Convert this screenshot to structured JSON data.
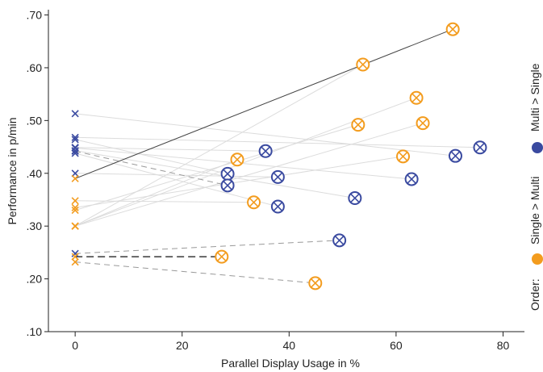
{
  "chart_data": {
    "type": "scatter",
    "xlabel": "Parallel Display Usage in %",
    "ylabel": "Performance in p/min",
    "xlim": [
      -5,
      84
    ],
    "ylim": [
      0.1,
      0.71
    ],
    "x_ticks": [
      0,
      20,
      40,
      60,
      80
    ],
    "x_tick_labels": [
      "0",
      "20",
      "40",
      "60",
      "80"
    ],
    "y_ticks": [
      0.1,
      0.2,
      0.3,
      0.4,
      0.5,
      0.6,
      0.7
    ],
    "y_tick_labels": [
      ".10",
      ".20",
      ".30",
      ".40",
      ".50",
      ".60",
      ".70"
    ],
    "grid": false,
    "colors": {
      "single_multi": "#f39c1e",
      "multi_single": "#3a4aa0"
    },
    "legend": {
      "placement": "right",
      "title": "Order:",
      "items": [
        {
          "label": "Single > Multi",
          "color_key": "single_multi"
        },
        {
          "label": "Multi > Single",
          "color_key": "multi_single"
        }
      ]
    },
    "series": [
      {
        "group": "multi_single",
        "x0": 0.513,
        "x": 71.1,
        "y": 0.433,
        "line": "light"
      },
      {
        "group": "multi_single",
        "x0": 0.468,
        "x": 75.7,
        "y": 0.449,
        "line": "light"
      },
      {
        "group": "multi_single",
        "x0": 0.464,
        "x": 28.5,
        "y": 0.399,
        "line": "light"
      },
      {
        "group": "multi_single",
        "x0": 0.449,
        "x": 35.6,
        "y": 0.442,
        "line": "light"
      },
      {
        "group": "multi_single",
        "x0": 0.443,
        "x": 52.3,
        "y": 0.353,
        "line": "light"
      },
      {
        "group": "multi_single",
        "x0": 0.448,
        "x": 62.9,
        "y": 0.389,
        "line": "light"
      },
      {
        "group": "multi_single",
        "x0": 0.442,
        "x": 28.5,
        "y": 0.377,
        "line": "dashed"
      },
      {
        "group": "multi_single",
        "x0": 0.4,
        "x": 37.9,
        "y": 0.393,
        "line": "light"
      },
      {
        "group": "multi_single",
        "x0": 0.438,
        "x": 37.9,
        "y": 0.337,
        "line": "light"
      },
      {
        "group": "multi_single",
        "x0": 0.248,
        "x": 49.4,
        "y": 0.273,
        "line": "dashed"
      },
      {
        "group": "single_multi",
        "x0": 0.39,
        "x": 70.6,
        "y": 0.673,
        "line": "dark"
      },
      {
        "group": "single_multi",
        "x0": 0.3,
        "x": 53.8,
        "y": 0.606,
        "line": "light"
      },
      {
        "group": "single_multi",
        "x0": 0.3,
        "x": 63.8,
        "y": 0.543,
        "line": "light"
      },
      {
        "group": "single_multi",
        "x0": 0.3,
        "x": 65.0,
        "y": 0.495,
        "line": "light"
      },
      {
        "group": "single_multi",
        "x0": 0.33,
        "x": 52.9,
        "y": 0.492,
        "line": "light"
      },
      {
        "group": "single_multi",
        "x0": 0.335,
        "x": 61.3,
        "y": 0.432,
        "line": "light"
      },
      {
        "group": "single_multi",
        "x0": 0.3,
        "x": 30.3,
        "y": 0.426,
        "line": "light"
      },
      {
        "group": "single_multi",
        "x0": 0.348,
        "x": 33.4,
        "y": 0.345,
        "line": "light"
      },
      {
        "group": "single_multi",
        "x0": 0.242,
        "x": 27.4,
        "y": 0.242,
        "line": "black-dashed"
      },
      {
        "group": "single_multi",
        "x0": 0.232,
        "x": 44.9,
        "y": 0.192,
        "line": "dashed"
      }
    ]
  }
}
